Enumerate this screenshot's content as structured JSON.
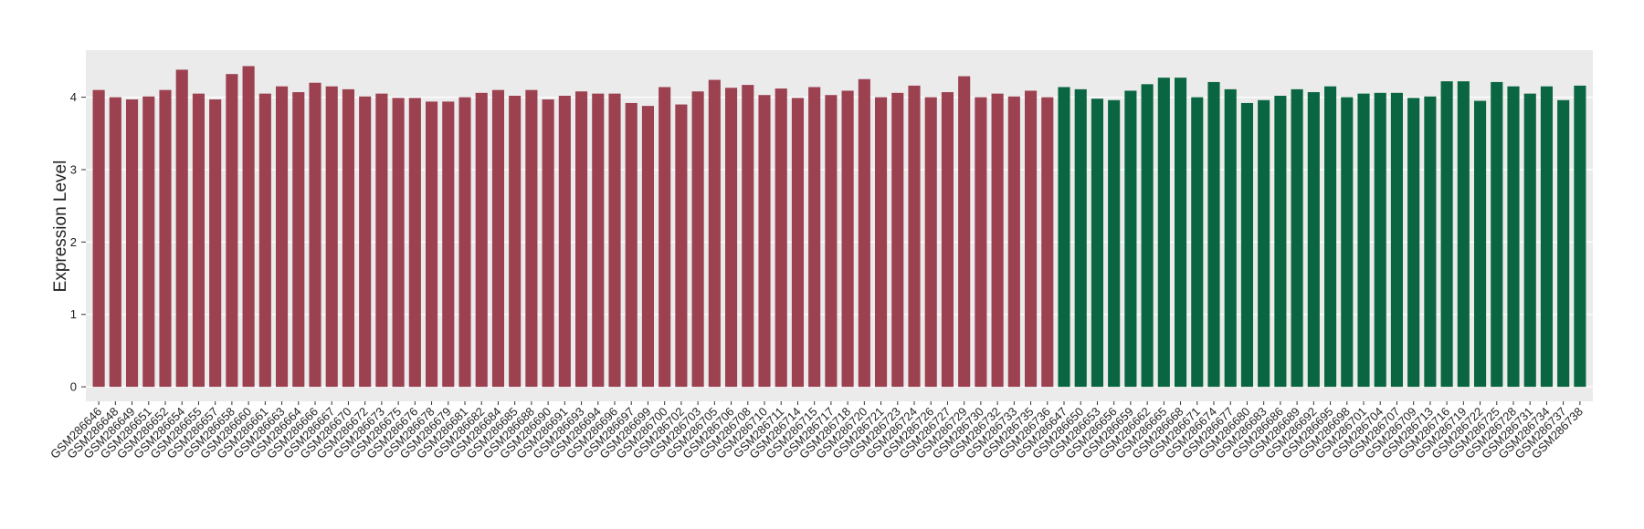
{
  "chart_data": {
    "type": "bar",
    "y_label": "Expression Level",
    "categories": [
      "GSM286646",
      "GSM286648",
      "GSM286649",
      "GSM286651",
      "GSM286652",
      "GSM286654",
      "GSM286655",
      "GSM286657",
      "GSM286658",
      "GSM286660",
      "GSM286661",
      "GSM286663",
      "GSM286664",
      "GSM286666",
      "GSM286667",
      "GSM286670",
      "GSM286672",
      "GSM286673",
      "GSM286675",
      "GSM286676",
      "GSM286678",
      "GSM286679",
      "GSM286681",
      "GSM286682",
      "GSM286684",
      "GSM286685",
      "GSM286688",
      "GSM286690",
      "GSM286691",
      "GSM286693",
      "GSM286694",
      "GSM286696",
      "GSM286697",
      "GSM286699",
      "GSM286700",
      "GSM286702",
      "GSM286703",
      "GSM286705",
      "GSM286706",
      "GSM286708",
      "GSM286710",
      "GSM286711",
      "GSM286714",
      "GSM286715",
      "GSM286717",
      "GSM286718",
      "GSM286720",
      "GSM286721",
      "GSM286723",
      "GSM286724",
      "GSM286726",
      "GSM286727",
      "GSM286729",
      "GSM286730",
      "GSM286732",
      "GSM286733",
      "GSM286735",
      "GSM286736",
      "GSM286647",
      "GSM286650",
      "GSM286653",
      "GSM286656",
      "GSM286659",
      "GSM286662",
      "GSM286665",
      "GSM286668",
      "GSM286671",
      "GSM286674",
      "GSM286677",
      "GSM286680",
      "GSM286683",
      "GSM286686",
      "GSM286689",
      "GSM286692",
      "GSM286695",
      "GSM286698",
      "GSM286701",
      "GSM286704",
      "GSM286707",
      "GSM286709",
      "GSM286713",
      "GSM286716",
      "GSM286719",
      "GSM286722",
      "GSM286725",
      "GSM286728",
      "GSM286731",
      "GSM286734",
      "GSM286737",
      "GSM286738"
    ],
    "values": [
      4.1,
      4.0,
      3.97,
      4.01,
      4.1,
      4.38,
      4.05,
      3.97,
      4.32,
      4.43,
      4.05,
      4.15,
      4.07,
      4.2,
      4.15,
      4.11,
      4.01,
      4.05,
      3.99,
      3.99,
      3.94,
      3.94,
      4.0,
      4.06,
      4.1,
      4.02,
      4.1,
      3.97,
      4.02,
      4.08,
      4.05,
      4.05,
      3.92,
      3.88,
      4.14,
      3.9,
      4.08,
      4.24,
      4.13,
      4.17,
      4.03,
      4.12,
      3.99,
      4.14,
      4.03,
      4.09,
      4.25,
      4.0,
      4.06,
      4.16,
      4.0,
      4.07,
      4.29,
      4.0,
      4.05,
      4.01,
      4.09,
      4.0,
      4.14,
      4.11,
      3.98,
      3.96,
      4.09,
      4.18,
      4.27,
      4.27,
      4.0,
      4.21,
      4.11,
      3.92,
      3.96,
      4.02,
      4.11,
      4.07,
      4.15,
      4.0,
      4.05,
      4.06,
      4.06,
      3.99,
      4.01,
      4.22,
      4.22,
      3.95,
      4.21,
      4.15,
      4.05,
      4.15,
      3.96,
      4.16
    ],
    "colors": [
      "#9b4150",
      "#9b4150",
      "#9b4150",
      "#9b4150",
      "#9b4150",
      "#9b4150",
      "#9b4150",
      "#9b4150",
      "#9b4150",
      "#9b4150",
      "#9b4150",
      "#9b4150",
      "#9b4150",
      "#9b4150",
      "#9b4150",
      "#9b4150",
      "#9b4150",
      "#9b4150",
      "#9b4150",
      "#9b4150",
      "#9b4150",
      "#9b4150",
      "#9b4150",
      "#9b4150",
      "#9b4150",
      "#9b4150",
      "#9b4150",
      "#9b4150",
      "#9b4150",
      "#9b4150",
      "#9b4150",
      "#9b4150",
      "#9b4150",
      "#9b4150",
      "#9b4150",
      "#9b4150",
      "#9b4150",
      "#9b4150",
      "#9b4150",
      "#9b4150",
      "#9b4150",
      "#9b4150",
      "#9b4150",
      "#9b4150",
      "#9b4150",
      "#9b4150",
      "#9b4150",
      "#9b4150",
      "#9b4150",
      "#9b4150",
      "#9b4150",
      "#9b4150",
      "#9b4150",
      "#9b4150",
      "#9b4150",
      "#9b4150",
      "#9b4150",
      "#9b4150",
      "#0a6642",
      "#0a6642",
      "#0a6642",
      "#0a6642",
      "#0a6642",
      "#0a6642",
      "#0a6642",
      "#0a6642",
      "#0a6642",
      "#0a6642",
      "#0a6642",
      "#0a6642",
      "#0a6642",
      "#0a6642",
      "#0a6642",
      "#0a6642",
      "#0a6642",
      "#0a6642",
      "#0a6642",
      "#0a6642",
      "#0a6642",
      "#0a6642",
      "#0a6642",
      "#0a6642",
      "#0a6642",
      "#0a6642",
      "#0a6642",
      "#0a6642",
      "#0a6642",
      "#0a6642",
      "#0a6642",
      "#0a6642"
    ],
    "ylim": [
      -0.2,
      4.65
    ],
    "yticks": [
      0,
      1,
      2,
      3,
      4
    ],
    "grid": true
  }
}
